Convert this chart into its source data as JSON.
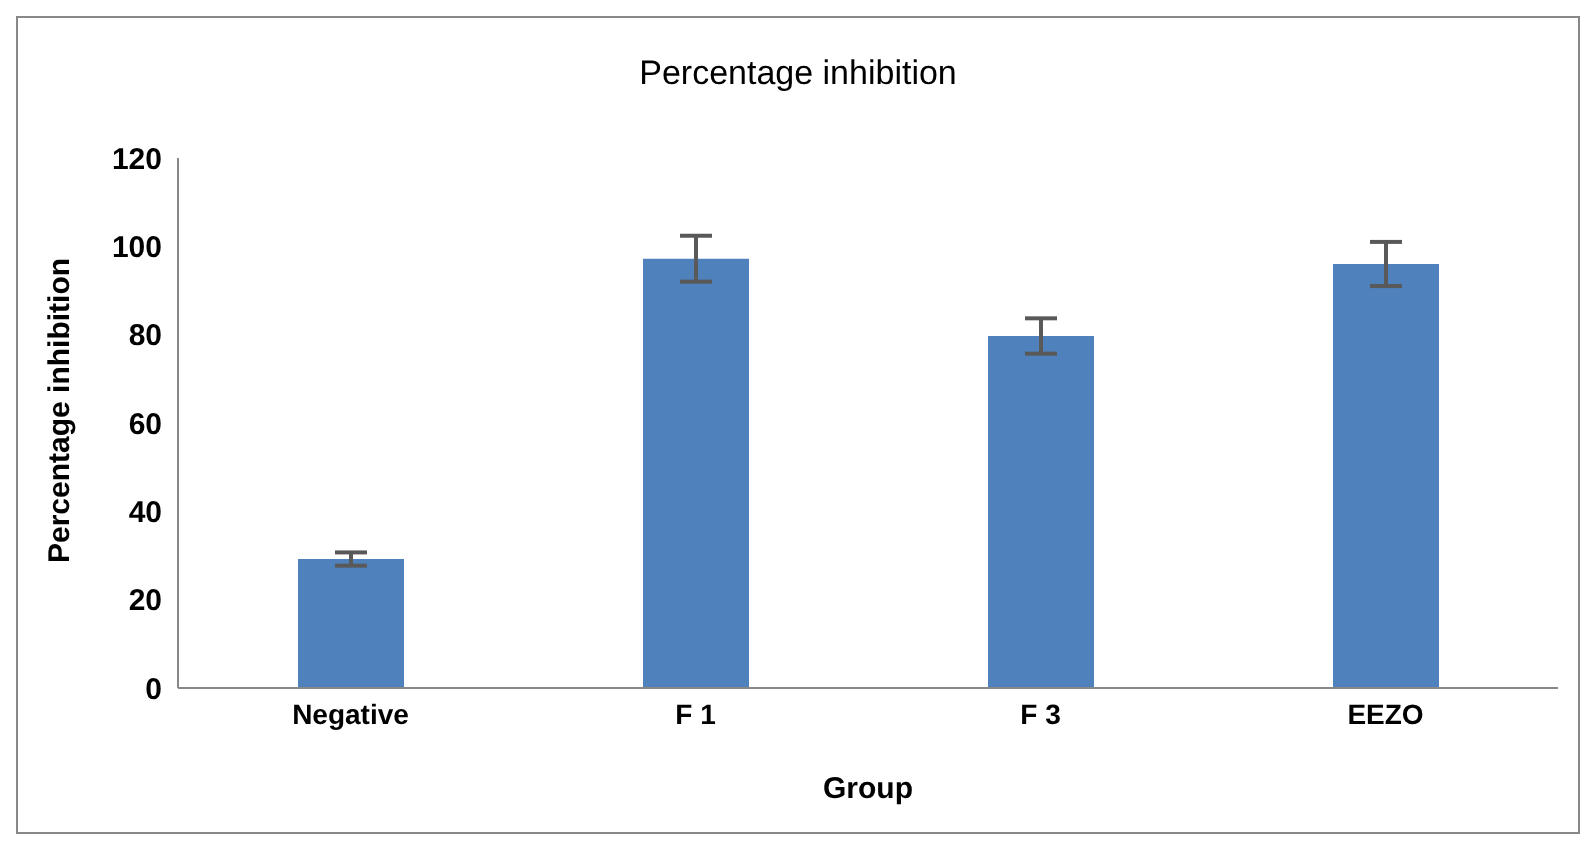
{
  "chart_data": {
    "type": "bar",
    "title": "Percentage inhibition",
    "xlabel": "Group",
    "ylabel": "Percentage inhibition",
    "categories": [
      "Negative",
      "F 1",
      "F 3",
      "EEZO"
    ],
    "values": [
      29.2,
      97.2,
      79.7,
      96
    ],
    "errors": [
      1.5,
      5.2,
      4,
      5
    ],
    "color": "#4f81bd",
    "ylim": [
      0,
      120
    ],
    "yticks": [
      0,
      20,
      40,
      60,
      80,
      100,
      120
    ],
    "grid": false,
    "legend": false
  }
}
